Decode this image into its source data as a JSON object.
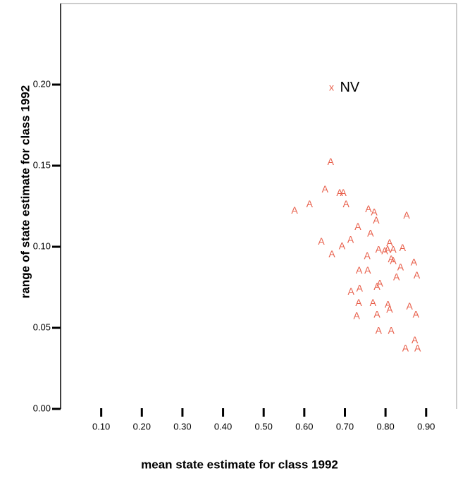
{
  "chart_data": {
    "type": "scatter",
    "x_label": "mean state estimate for class 1992",
    "y_label": "range of state estimate for class 1992",
    "xlim": [
      0,
      0.975
    ],
    "ylim": [
      0,
      0.25
    ],
    "xticks": [
      {
        "value": 0.1,
        "label": "0.10"
      },
      {
        "value": 0.2,
        "label": "0.20"
      },
      {
        "value": 0.3,
        "label": "0.30"
      },
      {
        "value": 0.4,
        "label": "0.40"
      },
      {
        "value": 0.5,
        "label": "0.50"
      },
      {
        "value": 0.6,
        "label": "0.60"
      },
      {
        "value": 0.7,
        "label": "0.70"
      },
      {
        "value": 0.8,
        "label": "0.80"
      },
      {
        "value": 0.9,
        "label": "0.90"
      }
    ],
    "yticks": [
      {
        "value": 0,
        "label": "0.00"
      },
      {
        "value": 0.05,
        "label": "0.05"
      },
      {
        "value": 0.1,
        "label": "0.10"
      },
      {
        "value": 0.15,
        "label": "0.15"
      },
      {
        "value": 0.2,
        "label": "0.20"
      }
    ],
    "series": [
      {
        "marker": "A",
        "color": "#e8604c",
        "x": [
          0.576,
          0.613,
          0.665,
          0.651,
          0.687,
          0.696,
          0.703,
          0.642,
          0.668,
          0.693,
          0.714,
          0.732,
          0.758,
          0.772,
          0.777,
          0.763,
          0.755,
          0.852,
          0.783,
          0.798,
          0.81,
          0.805,
          0.819,
          0.842,
          0.814,
          0.819,
          0.837,
          0.87,
          0.827,
          0.877,
          0.735,
          0.756,
          0.786,
          0.779,
          0.715,
          0.736,
          0.734,
          0.769,
          0.806,
          0.81,
          0.729,
          0.779,
          0.859,
          0.875,
          0.783,
          0.814,
          0.849,
          0.872,
          0.879
        ],
        "values": [
          0.122,
          0.126,
          0.152,
          0.135,
          0.133,
          0.133,
          0.126,
          0.103,
          0.095,
          0.1,
          0.104,
          0.112,
          0.123,
          0.121,
          0.116,
          0.108,
          0.094,
          0.119,
          0.098,
          0.097,
          0.102,
          0.098,
          0.098,
          0.099,
          0.092,
          0.091,
          0.087,
          0.09,
          0.081,
          0.082,
          0.085,
          0.085,
          0.077,
          0.075,
          0.072,
          0.074,
          0.065,
          0.065,
          0.064,
          0.061,
          0.057,
          0.058,
          0.063,
          0.058,
          0.048,
          0.048,
          0.037,
          0.042,
          0.037
        ]
      },
      {
        "marker": "x",
        "color": "#e8604c",
        "label": "NV",
        "x": [
          0.667
        ],
        "values": [
          0.198
        ]
      }
    ]
  }
}
